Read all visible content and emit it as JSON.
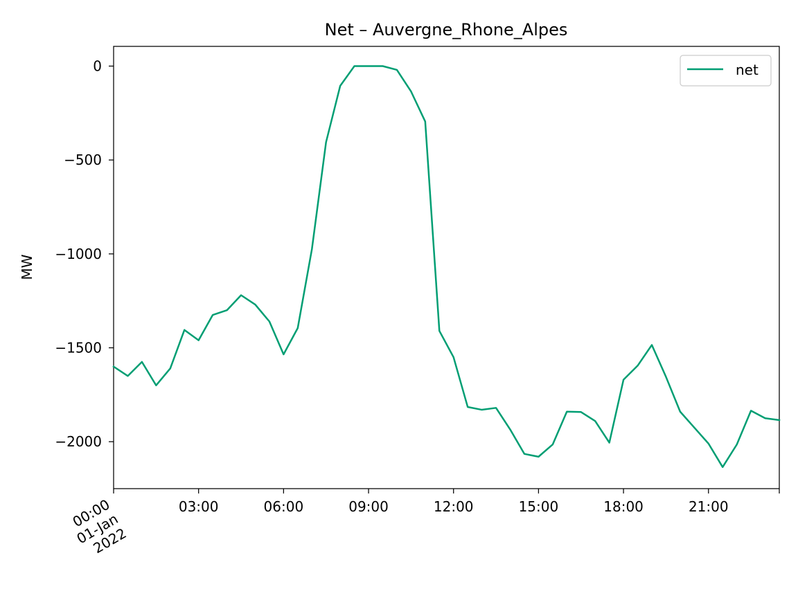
{
  "chart_data": {
    "type": "line",
    "title": "Net – Auvergne_Rhone_Alpes",
    "xlabel": "",
    "ylabel": "MW",
    "x": [
      "00:00",
      "00:30",
      "01:00",
      "01:30",
      "02:00",
      "02:30",
      "03:00",
      "03:30",
      "04:00",
      "04:30",
      "05:00",
      "05:30",
      "06:00",
      "06:30",
      "07:00",
      "07:30",
      "08:00",
      "08:30",
      "09:00",
      "09:30",
      "10:00",
      "10:30",
      "11:00",
      "11:30",
      "12:00",
      "12:30",
      "13:00",
      "13:30",
      "14:00",
      "14:30",
      "15:00",
      "15:30",
      "16:00",
      "16:30",
      "17:00",
      "17:30",
      "18:00",
      "18:30",
      "19:00",
      "19:30",
      "20:00",
      "20:30",
      "21:00",
      "21:30",
      "22:00",
      "22:30",
      "23:00",
      "23:30"
    ],
    "series": [
      {
        "name": "net",
        "color": "#009e73",
        "values": [
          -1600,
          -1650,
          -1575,
          -1700,
          -1610,
          -1405,
          -1460,
          -1325,
          -1300,
          -1220,
          -1270,
          -1360,
          -1535,
          -1395,
          -975,
          -405,
          -105,
          0,
          0,
          0,
          -20,
          -135,
          -295,
          -1410,
          -1550,
          -1815,
          -1830,
          -1820,
          -1935,
          -2065,
          -2080,
          -2015,
          -1840,
          -1842,
          -1890,
          -2005,
          -1670,
          -1595,
          -1485,
          -1655,
          -1840,
          -1925,
          -2010,
          -2135,
          -2015,
          -1835,
          -1875,
          -1885
        ]
      }
    ],
    "xticks": [
      {
        "x": "03:00",
        "label": "03:00"
      },
      {
        "x": "06:00",
        "label": "06:00"
      },
      {
        "x": "09:00",
        "label": "09:00"
      },
      {
        "x": "12:00",
        "label": "12:00"
      },
      {
        "x": "15:00",
        "label": "15:00"
      },
      {
        "x": "18:00",
        "label": "18:00"
      },
      {
        "x": "21:00",
        "label": "21:00"
      }
    ],
    "first_tick": [
      "00:00",
      "01-Jan",
      "2022"
    ],
    "yticks": [
      0,
      -500,
      -1000,
      -1500,
      -2000
    ],
    "ytick_labels": [
      "0",
      "−500",
      "−1000",
      "−1500",
      "−2000"
    ],
    "xlim": [
      "00:00",
      "23:30"
    ],
    "ylim": [
      -2250,
      105
    ],
    "grid": false,
    "legend": {
      "position": "top-right",
      "entries": [
        "net"
      ]
    }
  }
}
